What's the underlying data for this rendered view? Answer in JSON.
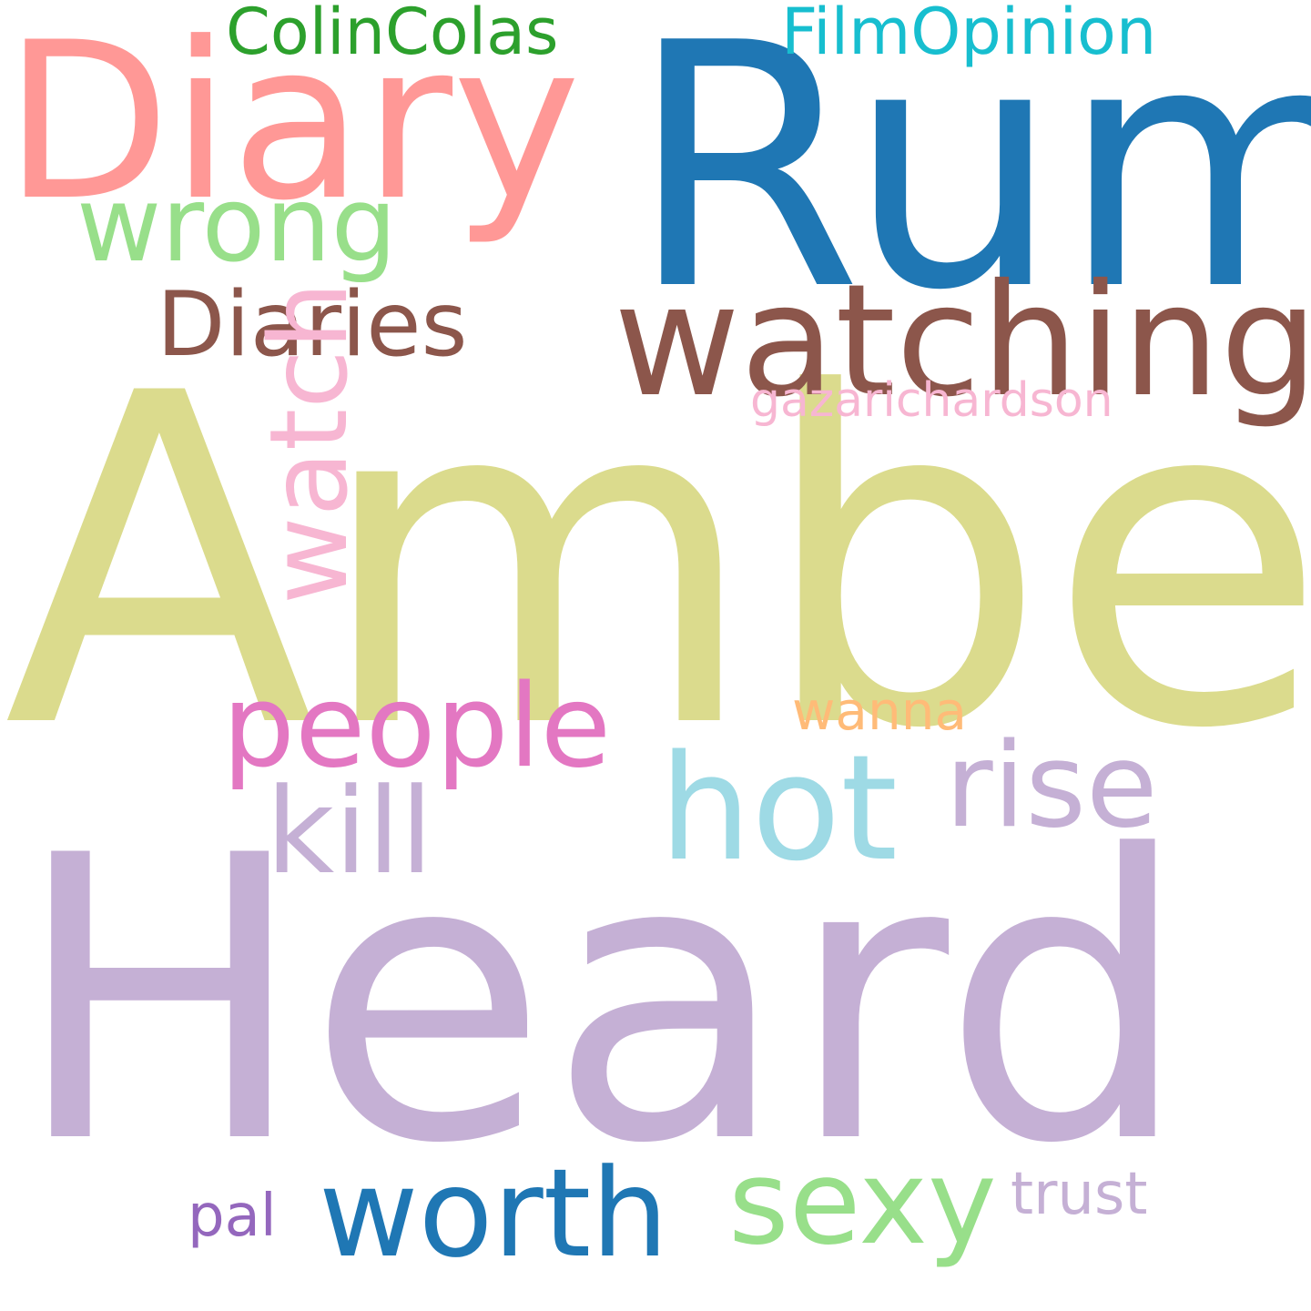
{
  "words": [
    {
      "text": "Heard",
      "color": "#c5b0d5"
    },
    {
      "text": "Amber",
      "color": "#dbdb8d"
    },
    {
      "text": "Rum",
      "color": "#1f77b4"
    },
    {
      "text": "Diary",
      "color": "#ff9896"
    },
    {
      "text": "watching",
      "color": "#8c564b"
    },
    {
      "text": "Diaries",
      "color": "#8c564b"
    },
    {
      "text": "wrong",
      "color": "#98df8a"
    },
    {
      "text": "ColinColas",
      "color": "#2ca02c"
    },
    {
      "text": "FilmOpinion",
      "color": "#17becf"
    },
    {
      "text": "gazarichardson",
      "color": "#f7b6d2"
    },
    {
      "text": "watch",
      "color": "#f7b6d2"
    },
    {
      "text": "people",
      "color": "#e377c2"
    },
    {
      "text": "wanna",
      "color": "#ffbb78"
    },
    {
      "text": "hot",
      "color": "#9edae5"
    },
    {
      "text": "rise",
      "color": "#c5b0d5"
    },
    {
      "text": "kill",
      "color": "#c5b0d5"
    },
    {
      "text": "sexy",
      "color": "#98df8a"
    },
    {
      "text": "worth",
      "color": "#1f77b4"
    },
    {
      "text": "trust",
      "color": "#c5b0d5"
    },
    {
      "text": "pal",
      "color": "#9467bd"
    }
  ]
}
